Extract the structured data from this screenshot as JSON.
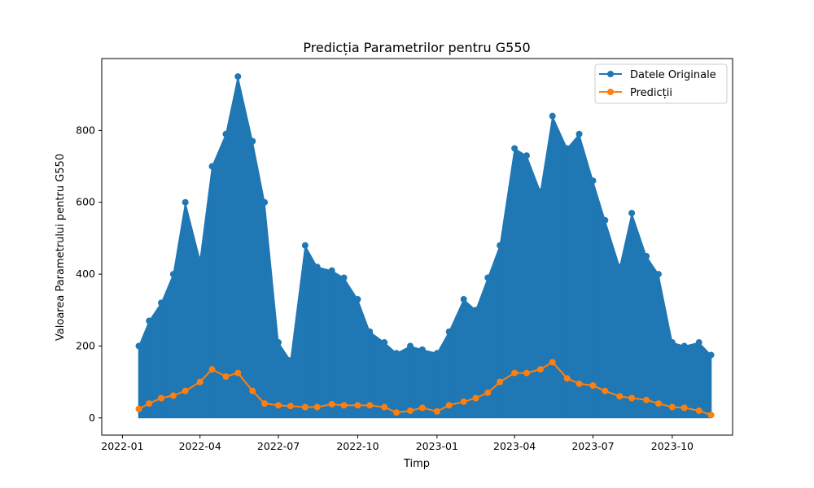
{
  "chart_data": {
    "type": "line",
    "title": "Predicția Parametrilor pentru G550",
    "xlabel": "Timp",
    "ylabel": "Valoarea Parametrului pentru G550",
    "x_tick_labels": [
      "2022-01",
      "2022-04",
      "2022-07",
      "2022-10",
      "2023-01",
      "2023-04",
      "2023-07",
      "2023-10"
    ],
    "x_tick_dates": [
      "2022-01-01",
      "2022-04-01",
      "2022-07-01",
      "2022-10-01",
      "2023-01-01",
      "2023-04-01",
      "2023-07-01",
      "2023-10-01"
    ],
    "xlim": [
      "2021-12-08",
      "2023-12-10"
    ],
    "y_ticks": [
      0,
      200,
      400,
      600,
      800
    ],
    "ylim": [
      -48,
      1000
    ],
    "legend_position": "top-right",
    "series": [
      {
        "name": "Datele Originale",
        "color": "#1f77b4",
        "x": [
          "2022-01-20",
          "2022-02-01",
          "2022-02-15",
          "2022-03-01",
          "2022-03-15",
          "2022-04-01",
          "2022-04-15",
          "2022-05-01",
          "2022-05-15",
          "2022-06-01",
          "2022-06-15",
          "2022-07-01",
          "2022-07-15",
          "2022-08-01",
          "2022-08-15",
          "2022-09-01",
          "2022-09-15",
          "2022-10-01",
          "2022-10-15",
          "2022-11-01",
          "2022-11-15",
          "2022-12-01",
          "2022-12-15",
          "2023-01-01",
          "2023-01-15",
          "2023-02-01",
          "2023-02-15",
          "2023-03-01",
          "2023-03-15",
          "2023-04-01",
          "2023-04-15",
          "2023-05-01",
          "2023-05-15",
          "2023-06-01",
          "2023-06-15",
          "2023-07-01",
          "2023-07-15",
          "2023-08-01",
          "2023-08-15",
          "2023-09-01",
          "2023-09-15",
          "2023-10-01",
          "2023-10-15",
          "2023-11-01",
          "2023-11-15"
        ],
        "values": [
          200,
          270,
          320,
          400,
          600,
          440,
          700,
          790,
          950,
          770,
          600,
          210,
          160,
          480,
          420,
          410,
          390,
          330,
          240,
          210,
          180,
          200,
          190,
          180,
          240,
          330,
          300,
          390,
          480,
          750,
          730,
          630,
          840,
          750,
          790,
          660,
          550,
          420,
          570,
          450,
          400,
          210,
          200,
          210,
          175
        ]
      },
      {
        "name": "Predicții",
        "color": "#ff7f0e",
        "x": [
          "2022-01-20",
          "2022-02-01",
          "2022-02-15",
          "2022-03-01",
          "2022-03-15",
          "2022-04-01",
          "2022-04-15",
          "2022-05-01",
          "2022-05-15",
          "2022-06-01",
          "2022-06-15",
          "2022-07-01",
          "2022-07-15",
          "2022-08-01",
          "2022-08-15",
          "2022-09-01",
          "2022-09-15",
          "2022-10-01",
          "2022-10-15",
          "2022-11-01",
          "2022-11-15",
          "2022-12-01",
          "2022-12-15",
          "2023-01-01",
          "2023-01-15",
          "2023-02-01",
          "2023-02-15",
          "2023-03-01",
          "2023-03-15",
          "2023-04-01",
          "2023-04-15",
          "2023-05-01",
          "2023-05-15",
          "2023-06-01",
          "2023-06-15",
          "2023-07-01",
          "2023-07-15",
          "2023-08-01",
          "2023-08-15",
          "2023-09-01",
          "2023-09-15",
          "2023-10-01",
          "2023-10-15",
          "2023-11-01",
          "2023-11-15"
        ],
        "values": [
          25,
          40,
          55,
          62,
          75,
          100,
          135,
          115,
          125,
          75,
          40,
          35,
          33,
          30,
          30,
          38,
          35,
          35,
          35,
          30,
          15,
          20,
          28,
          18,
          35,
          45,
          55,
          70,
          100,
          125,
          125,
          135,
          155,
          110,
          95,
          90,
          75,
          60,
          55,
          50,
          40,
          30,
          28,
          20,
          8
        ]
      }
    ]
  }
}
